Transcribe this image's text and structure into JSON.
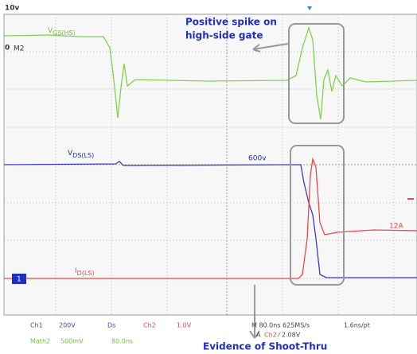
{
  "scale": {
    "top": "10v",
    "zero": "0",
    "zero_marker": "M2",
    "ch1_marker": "1"
  },
  "traces": {
    "vgs": {
      "main": "V",
      "sub": "GS(HS)"
    },
    "vds": {
      "main": "V",
      "sub": "DS(LS)",
      "level": "600v"
    },
    "id": {
      "main": "I",
      "sub": "D(LS)",
      "level": "12A"
    }
  },
  "annotations": {
    "spike": [
      "Positive spike on",
      "high-side gate"
    ],
    "shoot_thru": "Evidence of Shoot-Thru"
  },
  "status": {
    "row1": {
      "ch1": "Ch1",
      "ch1_scale": "200V",
      "ch1_coupling": "Ds",
      "ch2": "Ch2",
      "ch2_scale": "1.0V",
      "timebase": "M 80.0ns 625MS/s",
      "resolution": "1.6ns/pt"
    },
    "row2": {
      "math": "Math2",
      "math_scale": "500mV",
      "math_time": "80.0ns",
      "trigger_a": "A",
      "trigger_ch": "Ch2",
      "trigger_level": "⁄ 2.08V"
    }
  }
}
